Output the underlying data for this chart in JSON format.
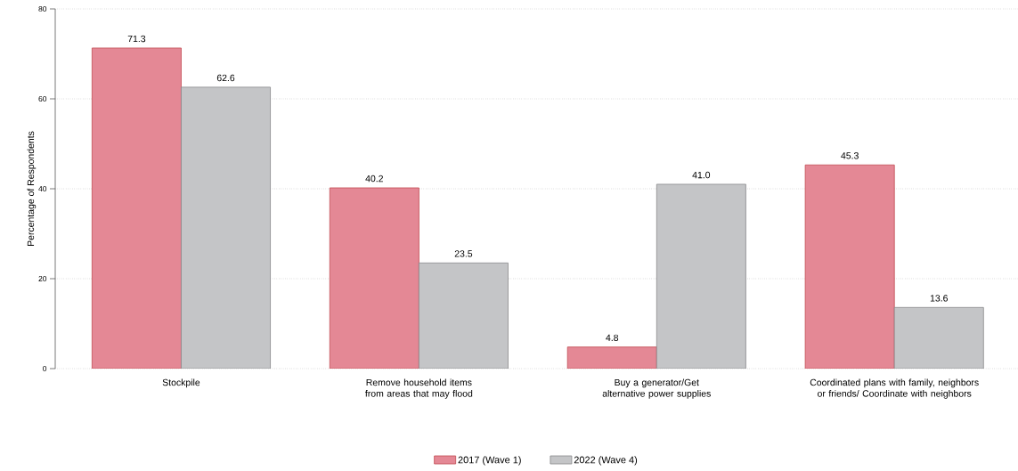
{
  "chart_data": {
    "type": "bar",
    "ylabel": "Percentage of Respondents",
    "categories": [
      "Stockpile",
      "Remove household items from areas that may flood",
      "Buy a generator/Get alternative power supplies",
      "Coordinated plans with family, neighbors or friends/ Coordinate with neighbors"
    ],
    "series": [
      {
        "name": "2017 (Wave 1)",
        "color": "#e48895",
        "values": [
          71.3,
          40.2,
          4.8,
          45.3
        ],
        "value_labels": [
          "71.3",
          "40.2",
          "4.8",
          "45.3"
        ]
      },
      {
        "name": "2022 (Wave 4)",
        "color": "#c4c5c7",
        "values": [
          62.6,
          23.5,
          41.0,
          13.6
        ],
        "value_labels": [
          "62.6",
          "23.5",
          "41.0",
          "13.6"
        ]
      }
    ],
    "ylim": [
      0,
      80
    ],
    "yticks": [
      0,
      20,
      40,
      60,
      80
    ],
    "grid": "y",
    "legend": "bottom"
  }
}
